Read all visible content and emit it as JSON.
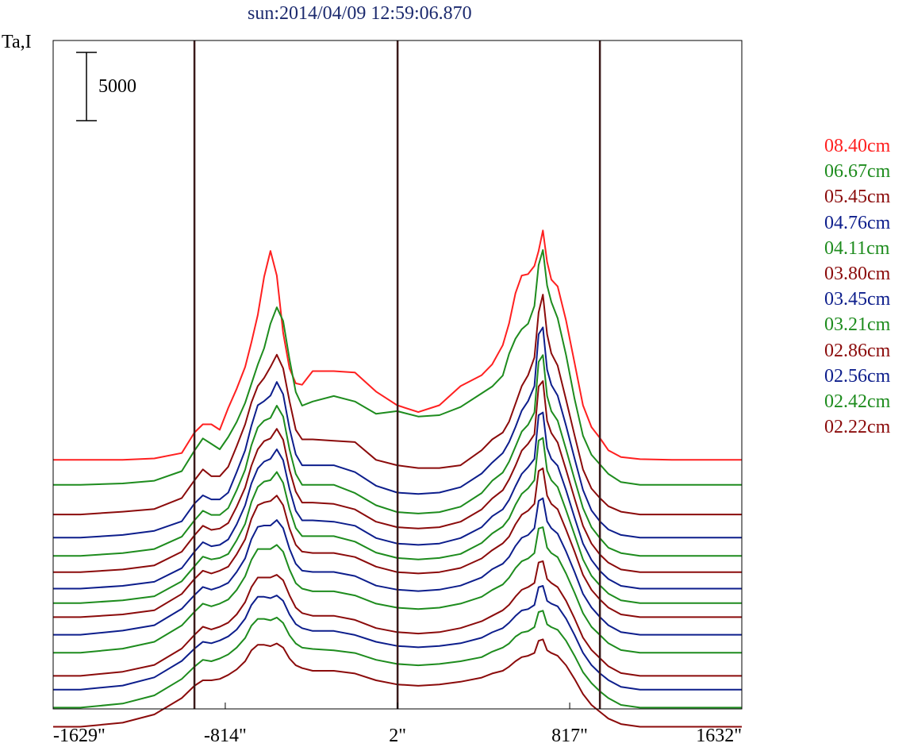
{
  "title": "sun:2014/04/09 12:59:06.870",
  "chart_data": {
    "type": "line",
    "title": "sun:2014/04/09 12:59:06.870",
    "ylabel": "Ta,I",
    "xlabel": "",
    "x_tick_labels": [
      "-1629\"",
      "-814\"",
      "2\"",
      "817\"",
      "1632\""
    ],
    "x_ticks": [
      -1629,
      -814,
      2,
      817,
      1632
    ],
    "xlim": [
      -1629,
      1632
    ],
    "vertical_lines": [
      -960,
      2,
      960
    ],
    "scale_bar": {
      "label": "5000",
      "value": 5000
    },
    "grid": false,
    "legend_position": "right",
    "profile_x": [
      -1629,
      -1500,
      -1300,
      -1150,
      -1020,
      -960,
      -920,
      -880,
      -840,
      -800,
      -760,
      -720,
      -690,
      -660,
      -630,
      -600,
      -570,
      -540,
      -510,
      -480,
      -450,
      -400,
      -300,
      -200,
      -100,
      0,
      100,
      200,
      300,
      400,
      450,
      500,
      530,
      560,
      590,
      620,
      650,
      670,
      690,
      710,
      730,
      760,
      800,
      840,
      880,
      920,
      960,
      1000,
      1060,
      1150,
      1300,
      1500,
      1632
    ],
    "series": [
      {
        "name": "08.40cm",
        "color": "#ff2020",
        "offset_ta": 17310,
        "values": [
          0,
          0,
          0,
          100,
          500,
          2000,
          2600,
          2600,
          2200,
          3800,
          5200,
          6800,
          8600,
          10600,
          13400,
          15300,
          13500,
          9300,
          6700,
          5600,
          5500,
          6500,
          6500,
          6400,
          5000,
          4000,
          3500,
          4000,
          5400,
          6200,
          7000,
          8400,
          10000,
          12200,
          13500,
          13600,
          14200,
          15300,
          16800,
          14500,
          13200,
          12700,
          10200,
          7100,
          4000,
          2400,
          1600,
          700,
          200,
          50,
          0,
          0,
          0
        ]
      },
      {
        "name": "06.67cm",
        "color": "#1e8c1e",
        "offset_ta": 15480,
        "values": [
          0,
          0,
          100,
          300,
          1000,
          2500,
          3400,
          3000,
          2600,
          3500,
          4600,
          6000,
          7400,
          8800,
          10000,
          11800,
          13000,
          12000,
          9200,
          6800,
          5800,
          6100,
          6500,
          6100,
          5200,
          5400,
          5000,
          5100,
          5700,
          6700,
          7200,
          8000,
          9600,
          10700,
          11400,
          11800,
          13100,
          16100,
          17200,
          14600,
          13400,
          12200,
          9500,
          6300,
          3600,
          2200,
          1500,
          800,
          200,
          0,
          0,
          0,
          0
        ]
      },
      {
        "name": "05.45cm",
        "color": "#8b0b0b",
        "offset_ta": 13310,
        "values": [
          0,
          0,
          200,
          400,
          1200,
          2500,
          3300,
          2800,
          2800,
          3500,
          5000,
          6600,
          8200,
          9400,
          10000,
          10800,
          11700,
          10700,
          8300,
          6200,
          5500,
          5500,
          5400,
          5300,
          4000,
          3600,
          3400,
          3400,
          3600,
          4700,
          5500,
          6000,
          6800,
          8100,
          9400,
          10200,
          11500,
          14800,
          16100,
          13200,
          11800,
          10900,
          8400,
          5800,
          3300,
          1900,
          1200,
          600,
          200,
          0,
          0,
          0,
          0
        ]
      },
      {
        "name": "04.76cm",
        "color": "#0d1e8c",
        "offset_ta": 11610,
        "values": [
          0,
          0,
          200,
          500,
          1200,
          2500,
          3100,
          2800,
          2800,
          3300,
          4800,
          6400,
          8200,
          9700,
          10000,
          10400,
          11400,
          10500,
          8000,
          6100,
          5300,
          5300,
          5300,
          4800,
          3800,
          3300,
          3200,
          3300,
          3700,
          4700,
          5500,
          6200,
          7000,
          8100,
          9300,
          10000,
          11100,
          14900,
          15400,
          12300,
          11200,
          10400,
          8200,
          5800,
          3500,
          2000,
          1200,
          600,
          200,
          0,
          0,
          0,
          0
        ]
      },
      {
        "name": "04.11cm",
        "color": "#1e8c1e",
        "offset_ta": 10280,
        "values": [
          0,
          0,
          200,
          500,
          1400,
          2600,
          3300,
          3000,
          3000,
          3500,
          4800,
          6300,
          8100,
          9400,
          9900,
          10100,
          11000,
          10200,
          7800,
          6000,
          5200,
          5200,
          5200,
          4600,
          3700,
          3200,
          3100,
          3200,
          3600,
          4600,
          5500,
          6100,
          6900,
          8000,
          9100,
          9600,
          10500,
          14200,
          14700,
          11700,
          10600,
          9900,
          7800,
          5600,
          3500,
          2100,
          1300,
          600,
          200,
          0,
          0,
          0,
          0
        ]
      },
      {
        "name": "03.80cm",
        "color": "#8b0b0b",
        "offset_ta": 9080,
        "values": [
          0,
          0,
          200,
          500,
          1500,
          2700,
          3400,
          3100,
          3200,
          3600,
          4800,
          6200,
          7800,
          9000,
          9600,
          9800,
          10500,
          9700,
          7500,
          5900,
          5100,
          5100,
          5000,
          4600,
          3700,
          3300,
          3200,
          3300,
          3700,
          4600,
          5400,
          6000,
          6800,
          7800,
          8900,
          9400,
          10100,
          13600,
          14000,
          11100,
          10200,
          9500,
          7500,
          5400,
          3400,
          2100,
          1300,
          700,
          200,
          0,
          0,
          0,
          0
        ]
      },
      {
        "name": "03.45cm",
        "color": "#0d1e8c",
        "offset_ta": 7880,
        "values": [
          0,
          0,
          200,
          500,
          1500,
          2700,
          3400,
          3100,
          3200,
          3600,
          4700,
          6100,
          7700,
          8800,
          9300,
          9500,
          10200,
          9400,
          7300,
          5700,
          5000,
          5000,
          4900,
          4600,
          3700,
          3300,
          3200,
          3300,
          3700,
          4500,
          5300,
          5800,
          6500,
          7500,
          8400,
          8900,
          9500,
          12700,
          12900,
          10300,
          9500,
          9000,
          7200,
          5200,
          3300,
          2100,
          1300,
          700,
          200,
          0,
          0,
          0,
          0
        ]
      },
      {
        "name": "03.21cm",
        "color": "#1e8c1e",
        "offset_ta": 6820,
        "values": [
          0,
          0,
          200,
          500,
          1600,
          2700,
          3400,
          3200,
          3300,
          3600,
          4600,
          5800,
          7400,
          8500,
          8900,
          9000,
          9600,
          8800,
          6900,
          5500,
          4900,
          4900,
          4900,
          4500,
          3700,
          3300,
          3200,
          3300,
          3600,
          4400,
          5100,
          5600,
          6200,
          7200,
          8000,
          8400,
          9000,
          11900,
          12100,
          9700,
          9000,
          8500,
          6800,
          5000,
          3200,
          2000,
          1300,
          700,
          200,
          0,
          0,
          0,
          0
        ]
      },
      {
        "name": "02.86cm",
        "color": "#8b0b0b",
        "offset_ta": 5790,
        "values": [
          0,
          0,
          200,
          500,
          1700,
          2800,
          3400,
          3200,
          3400,
          3700,
          4600,
          5700,
          7200,
          8200,
          8400,
          8500,
          8900,
          8200,
          6500,
          5300,
          4800,
          4700,
          4700,
          4400,
          3700,
          3300,
          3200,
          3300,
          3600,
          4300,
          4900,
          5400,
          5900,
          6800,
          7500,
          7800,
          8300,
          10700,
          10900,
          8900,
          8300,
          7900,
          6400,
          4800,
          3100,
          2000,
          1300,
          700,
          200,
          0,
          0,
          0,
          0
        ]
      },
      {
        "name": "02.56cm",
        "color": "#0d1e8c",
        "offset_ta": 4500,
        "values": [
          0,
          0,
          300,
          700,
          1900,
          2900,
          3500,
          3300,
          3500,
          3800,
          4600,
          5600,
          7000,
          7900,
          8000,
          8000,
          8400,
          7800,
          6300,
          5200,
          4700,
          4600,
          4600,
          4300,
          3600,
          3300,
          3200,
          3300,
          3600,
          4200,
          4800,
          5200,
          5700,
          6500,
          7100,
          7300,
          7800,
          9800,
          10000,
          8300,
          7800,
          7400,
          6100,
          4600,
          3000,
          2000,
          1300,
          700,
          200,
          0,
          0,
          0,
          0
        ]
      },
      {
        "name": "02.42cm",
        "color": "#1e8c1e",
        "offset_ta": 3180,
        "values": [
          0,
          0,
          300,
          800,
          2000,
          3000,
          3600,
          3400,
          3600,
          3900,
          4600,
          5600,
          6800,
          7600,
          7600,
          7600,
          7900,
          7400,
          6100,
          5100,
          4700,
          4500,
          4500,
          4200,
          3600,
          3300,
          3200,
          3300,
          3600,
          4100,
          4600,
          5000,
          5500,
          6200,
          6700,
          6900,
          7300,
          9100,
          9200,
          7700,
          7300,
          7000,
          5800,
          4400,
          2900,
          1900,
          1300,
          700,
          200,
          0,
          0,
          0,
          0
        ]
      },
      {
        "name": "02.22cm",
        "color": "#8b0b0b",
        "offset_ta": 1490,
        "values": [
          0,
          0,
          300,
          800,
          2000,
          3000,
          3600,
          3400,
          3600,
          3900,
          4500,
          5400,
          6500,
          7200,
          7200,
          7200,
          7400,
          7000,
          5900,
          5000,
          4600,
          4400,
          4400,
          4100,
          3500,
          3200,
          3100,
          3200,
          3500,
          4000,
          4400,
          4800,
          5200,
          5800,
          6300,
          6500,
          6800,
          8300,
          8400,
          7100,
          6800,
          6500,
          5500,
          4200,
          2800,
          1900,
          1300,
          700,
          200,
          0,
          0,
          0,
          0
        ]
      },
      {
        "name": "",
        "color": "#0d1e8c",
        "offset_ta": 480,
        "values": [
          0,
          0,
          300,
          900,
          2100,
          3000,
          3500,
          3400,
          3600,
          3900,
          4400,
          5200,
          6200,
          6800,
          6800,
          6700,
          6900,
          6500,
          5500,
          4800,
          4500,
          4300,
          4300,
          4000,
          3500,
          3200,
          3100,
          3200,
          3400,
          3800,
          4200,
          4500,
          4900,
          5400,
          5800,
          5900,
          6200,
          7500,
          7600,
          6500,
          6300,
          6100,
          5200,
          4000,
          2700,
          1800,
          1200,
          700,
          200,
          0,
          0,
          0,
          0
        ]
      },
      {
        "name": "",
        "color": "#1e8c1e",
        "offset_ta": -840,
        "values": [
          0,
          0,
          300,
          900,
          2100,
          3000,
          3500,
          3400,
          3600,
          3900,
          4400,
          5100,
          6000,
          6500,
          6500,
          6400,
          6600,
          6200,
          5300,
          4700,
          4400,
          4300,
          4200,
          4000,
          3500,
          3200,
          3100,
          3200,
          3400,
          3700,
          4100,
          4400,
          4700,
          5200,
          5500,
          5600,
          5900,
          7000,
          7100,
          6100,
          5900,
          5700,
          4900,
          3800,
          2600,
          1800,
          1200,
          700,
          200,
          0,
          0,
          0,
          0
        ]
      },
      {
        "name": "",
        "color": "#8b0b0b",
        "offset_ta": -2240,
        "values": [
          0,
          0,
          300,
          900,
          2100,
          3000,
          3400,
          3400,
          3500,
          3800,
          4200,
          4800,
          5600,
          6000,
          6000,
          5900,
          6100,
          5800,
          5000,
          4500,
          4300,
          4100,
          4100,
          3900,
          3400,
          3100,
          3000,
          3100,
          3300,
          3600,
          3900,
          4100,
          4400,
          4800,
          5100,
          5200,
          5400,
          6300,
          6400,
          5600,
          5400,
          5200,
          4500,
          3500,
          2400,
          1600,
          1100,
          600,
          200,
          0,
          0,
          0,
          0
        ]
      }
    ]
  }
}
